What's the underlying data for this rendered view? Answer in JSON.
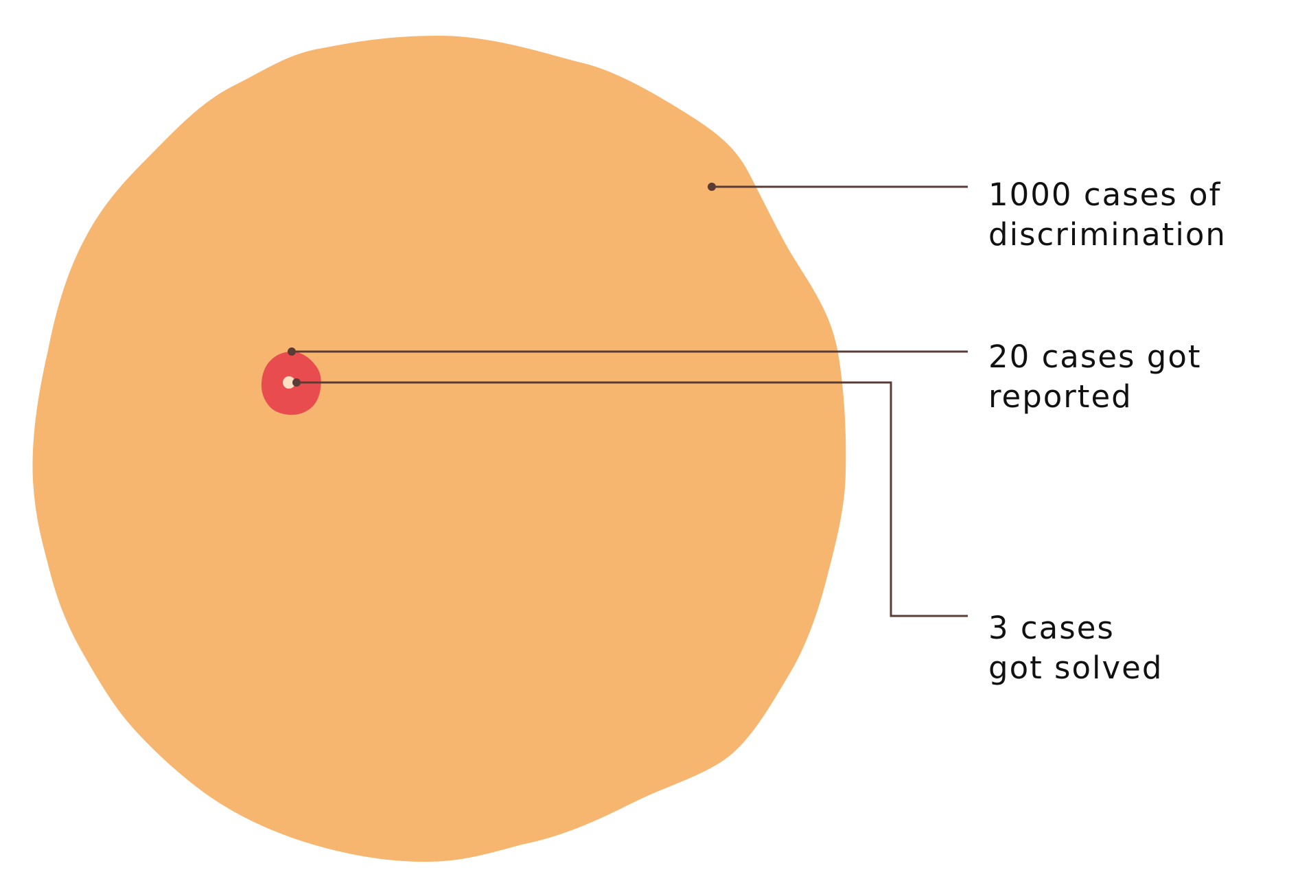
{
  "colors": {
    "background": "#ffffff",
    "outer_blob": "#f7b670",
    "middle_blob": "#e84c4f",
    "inner_dot": "#fbe0c3",
    "leader_line": "#5a3c35",
    "text": "#111111"
  },
  "labels": {
    "all_cases": {
      "line1": "1000 cases of",
      "line2": "discrimination"
    },
    "reported": {
      "line1": "20 cases got",
      "line2": "reported"
    },
    "solved": {
      "line1": "3 cases",
      "line2": "got solved"
    }
  }
}
